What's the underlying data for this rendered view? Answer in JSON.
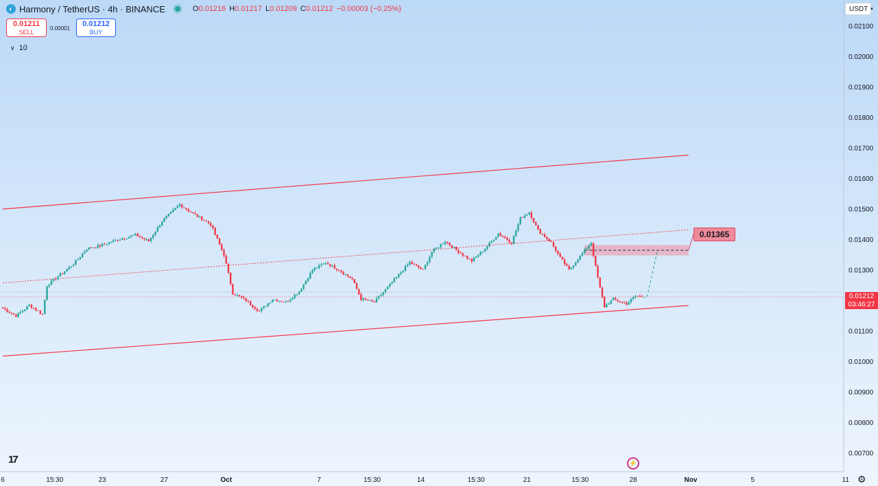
{
  "header": {
    "symbol": "Harmony / TetherUS · 4h · BINANCE",
    "logo_icon": "harmony-logo-icon",
    "ohlc": {
      "o_label": "O",
      "o": "0.01216",
      "h_label": "H",
      "h": "0.01217",
      "l_label": "L",
      "l": "0.01209",
      "c_label": "C",
      "c": "0.01212"
    },
    "change": "−0.00003 (−0.25%)"
  },
  "trade": {
    "sell_price": "0.01211",
    "sell_label": "SELL",
    "spread": "0.00001",
    "buy_price": "0.01212",
    "buy_label": "BUY"
  },
  "indicators": {
    "chevron": "chevron-down-icon",
    "count": "10"
  },
  "currency": {
    "label": "USDT",
    "icon": "chevron-down-icon"
  },
  "last_price": {
    "value": "0.01212",
    "countdown": "03:46:27"
  },
  "target_label": "0.01365",
  "colors": {
    "up": "#26a69a",
    "down": "#f23645",
    "channel": "#f23645",
    "zone": "#e9a6b8"
  },
  "chart_data": {
    "type": "candlestick",
    "timeframe": "4h",
    "y_ticks": [
      "0.02100",
      "0.02000",
      "0.01900",
      "0.01800",
      "0.01700",
      "0.01600",
      "0.01500",
      "0.01400",
      "0.01300",
      "0.01100",
      "0.01000",
      "0.00900",
      "0.00800",
      "0.00700"
    ],
    "x_ticks": [
      {
        "label": "6",
        "t": 0
      },
      {
        "label": "15:30",
        "t": 11.75
      },
      {
        "label": "23",
        "t": 22.5
      },
      {
        "label": "27",
        "t": 36.5
      },
      {
        "label": "Oct",
        "t": 50.5
      },
      {
        "label": "7",
        "t": 71.5
      },
      {
        "label": "15:30",
        "t": 83.5
      },
      {
        "label": "14",
        "t": 94.5
      },
      {
        "label": "15:30",
        "t": 107
      },
      {
        "label": "21",
        "t": 118.5
      },
      {
        "label": "15:30",
        "t": 130.5
      },
      {
        "label": "28",
        "t": 142.5
      },
      {
        "label": "Nov",
        "t": 155.5
      },
      {
        "label": "5",
        "t": 169.5
      },
      {
        "label": "11",
        "t": 190.5
      }
    ],
    "ylim": [
      0.0067,
      0.0213
    ],
    "anchors": [
      [
        0,
        0.01175
      ],
      [
        3,
        0.0115
      ],
      [
        6,
        0.01185
      ],
      [
        9,
        0.01155
      ],
      [
        10,
        0.0125
      ],
      [
        13,
        0.01285
      ],
      [
        16,
        0.0132
      ],
      [
        19,
        0.0137
      ],
      [
        22,
        0.0138
      ],
      [
        26,
        0.014
      ],
      [
        30,
        0.01415
      ],
      [
        33,
        0.01395
      ],
      [
        36,
        0.0146
      ],
      [
        40,
        0.01515
      ],
      [
        43,
        0.01485
      ],
      [
        47,
        0.0145
      ],
      [
        50,
        0.0135
      ],
      [
        52,
        0.01225
      ],
      [
        55,
        0.012
      ],
      [
        58,
        0.01165
      ],
      [
        61,
        0.01205
      ],
      [
        64,
        0.01195
      ],
      [
        67,
        0.0123
      ],
      [
        70,
        0.013
      ],
      [
        73,
        0.01325
      ],
      [
        76,
        0.013
      ],
      [
        79,
        0.0127
      ],
      [
        81,
        0.01205
      ],
      [
        84,
        0.01195
      ],
      [
        88,
        0.0126
      ],
      [
        92,
        0.01325
      ],
      [
        95,
        0.013
      ],
      [
        97,
        0.0136
      ],
      [
        100,
        0.01395
      ],
      [
        103,
        0.0136
      ],
      [
        106,
        0.0133
      ],
      [
        109,
        0.0137
      ],
      [
        112,
        0.0142
      ],
      [
        115,
        0.0139
      ],
      [
        117,
        0.0147
      ],
      [
        119,
        0.0149
      ],
      [
        121,
        0.0143
      ],
      [
        124,
        0.0139
      ],
      [
        126,
        0.0134
      ],
      [
        128,
        0.013
      ],
      [
        131,
        0.01355
      ],
      [
        133,
        0.0139
      ],
      [
        134,
        0.0131
      ],
      [
        135,
        0.0124
      ],
      [
        136,
        0.0118
      ],
      [
        138,
        0.01205
      ],
      [
        141,
        0.0119
      ],
      [
        143,
        0.01215
      ],
      [
        145,
        0.01212
      ]
    ],
    "channel": {
      "upper": [
        [
          0,
          0.015
        ],
        [
          155,
          0.01677
        ]
      ],
      "middle": [
        [
          0,
          0.01258
        ],
        [
          155,
          0.01432
        ]
      ],
      "lower": [
        [
          0,
          0.01018
        ],
        [
          155,
          0.01184
        ]
      ]
    },
    "last_price": 0.01212,
    "target": 0.01365,
    "target_zone": [
      0.01348,
      0.01382
    ],
    "projection": [
      [
        145,
        0.01212
      ],
      [
        148,
        0.01365
      ]
    ]
  }
}
